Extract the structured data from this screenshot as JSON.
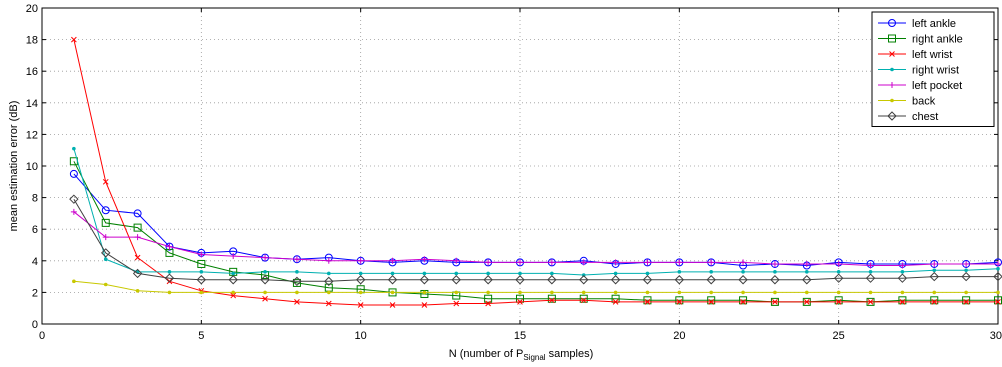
{
  "chart_data": {
    "type": "line",
    "xlabel": "N (number of P",
    "xlabel_sub": "Signal",
    "xlabel_end": " samples)",
    "ylabel": "mean estimation error (dB)",
    "xlim": [
      0,
      30
    ],
    "ylim": [
      0,
      20
    ],
    "xticks": [
      0,
      5,
      10,
      15,
      20,
      25,
      30
    ],
    "yticks": [
      0,
      2,
      4,
      6,
      8,
      10,
      12,
      14,
      16,
      18,
      20
    ],
    "grid": true,
    "legend_position": "top-right",
    "x": [
      1,
      2,
      3,
      4,
      5,
      6,
      7,
      8,
      9,
      10,
      11,
      12,
      13,
      14,
      15,
      16,
      17,
      18,
      19,
      20,
      21,
      22,
      23,
      24,
      25,
      26,
      27,
      28,
      29,
      30
    ],
    "series": [
      {
        "name": "left ankle",
        "color": "#0000ff",
        "marker": "circle",
        "values": [
          9.5,
          7.2,
          7.0,
          4.9,
          4.5,
          4.6,
          4.2,
          4.1,
          4.2,
          4.0,
          3.9,
          4.0,
          3.9,
          3.9,
          3.9,
          3.9,
          4.0,
          3.8,
          3.9,
          3.9,
          3.9,
          3.7,
          3.8,
          3.7,
          3.9,
          3.8,
          3.8,
          3.8,
          3.8,
          3.9
        ]
      },
      {
        "name": "right ankle",
        "color": "#008000",
        "marker": "square",
        "values": [
          10.3,
          6.4,
          6.1,
          4.5,
          3.8,
          3.3,
          3.1,
          2.6,
          2.3,
          2.2,
          2.0,
          1.9,
          1.8,
          1.6,
          1.6,
          1.6,
          1.6,
          1.6,
          1.5,
          1.5,
          1.5,
          1.5,
          1.4,
          1.4,
          1.5,
          1.4,
          1.5,
          1.5,
          1.5,
          1.5
        ]
      },
      {
        "name": "left wrist",
        "color": "#ff0000",
        "marker": "x",
        "values": [
          18.0,
          9.0,
          4.2,
          2.7,
          2.1,
          1.8,
          1.6,
          1.4,
          1.3,
          1.2,
          1.2,
          1.2,
          1.3,
          1.3,
          1.4,
          1.5,
          1.5,
          1.4,
          1.4,
          1.4,
          1.4,
          1.4,
          1.4,
          1.4,
          1.4,
          1.4,
          1.4,
          1.4,
          1.4,
          1.4
        ]
      },
      {
        "name": "right wrist",
        "color": "#00b0b0",
        "marker": "dot",
        "values": [
          11.1,
          4.1,
          3.3,
          3.3,
          3.3,
          3.2,
          3.3,
          3.3,
          3.2,
          3.2,
          3.2,
          3.2,
          3.2,
          3.2,
          3.2,
          3.2,
          3.1,
          3.2,
          3.2,
          3.3,
          3.3,
          3.3,
          3.3,
          3.3,
          3.3,
          3.3,
          3.3,
          3.4,
          3.4,
          3.5
        ]
      },
      {
        "name": "left pocket",
        "color": "#cc00cc",
        "marker": "plus",
        "values": [
          7.1,
          5.5,
          5.5,
          4.9,
          4.4,
          4.3,
          4.2,
          4.1,
          4.0,
          4.0,
          4.0,
          4.1,
          4.0,
          3.9,
          3.9,
          3.9,
          3.9,
          3.9,
          3.9,
          3.9,
          3.9,
          3.9,
          3.8,
          3.8,
          3.8,
          3.7,
          3.7,
          3.8,
          3.8,
          3.8
        ]
      },
      {
        "name": "back",
        "color": "#c8c800",
        "marker": "dot",
        "values": [
          2.7,
          2.5,
          2.1,
          2.0,
          2.0,
          2.0,
          2.0,
          2.0,
          2.0,
          2.0,
          2.0,
          2.0,
          2.0,
          2.0,
          2.0,
          2.0,
          2.0,
          2.0,
          2.0,
          2.0,
          2.0,
          2.0,
          2.0,
          2.0,
          2.0,
          2.0,
          2.0,
          2.0,
          2.0,
          2.0
        ]
      },
      {
        "name": "chest",
        "color": "#404040",
        "marker": "diamond",
        "values": [
          7.9,
          4.5,
          3.2,
          2.9,
          2.8,
          2.8,
          2.8,
          2.7,
          2.7,
          2.8,
          2.8,
          2.8,
          2.8,
          2.8,
          2.8,
          2.8,
          2.8,
          2.8,
          2.8,
          2.8,
          2.8,
          2.8,
          2.8,
          2.8,
          2.9,
          2.9,
          2.9,
          3.0,
          3.0,
          3.0
        ]
      }
    ]
  }
}
